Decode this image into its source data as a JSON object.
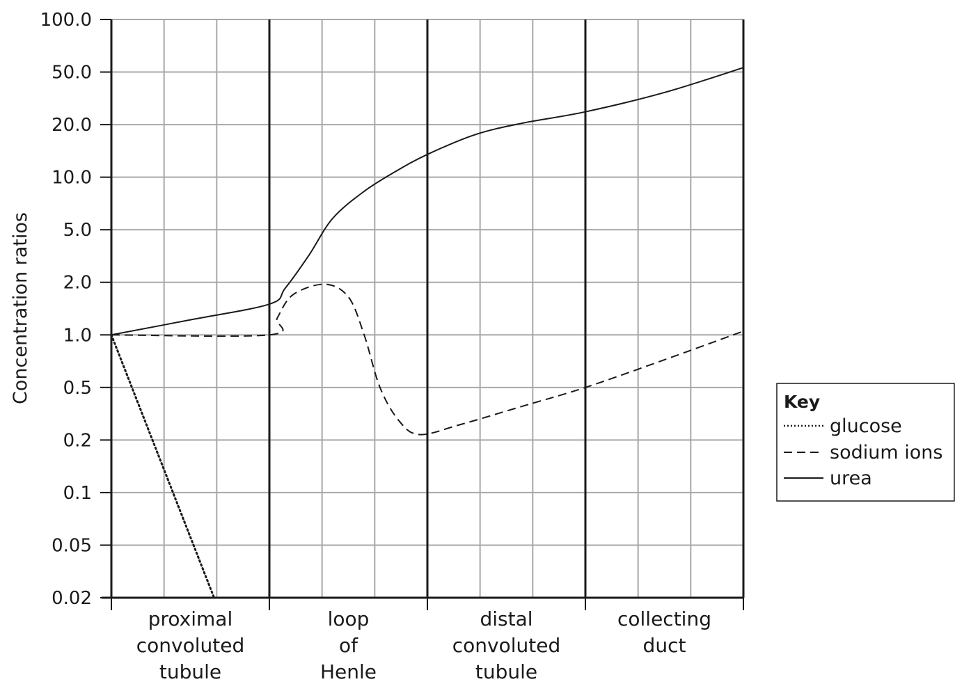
{
  "chart_data": {
    "type": "line",
    "ylabel": "Concentration ratios",
    "y_scale": "log",
    "y_ticks": [
      "100.0",
      "50.0",
      "20.0",
      "10.0",
      "5.0",
      "2.0",
      "1.0",
      "0.5",
      "0.2",
      "0.1",
      "0.05",
      "0.02"
    ],
    "y_tick_values": [
      100,
      50,
      20,
      10,
      5,
      2,
      1,
      0.5,
      0.2,
      0.1,
      0.05,
      0.02
    ],
    "ylim": [
      0.02,
      100
    ],
    "grid": true,
    "regions": [
      {
        "lines": [
          "proximal",
          "convoluted",
          "tubule"
        ]
      },
      {
        "lines": [
          "loop",
          "of",
          "Henle"
        ]
      },
      {
        "lines": [
          "distal",
          "convoluted",
          "tubule"
        ]
      },
      {
        "lines": [
          "collecting",
          "duct"
        ]
      }
    ],
    "legend": {
      "title": "Key",
      "placement": "right",
      "entries": [
        {
          "label": "glucose",
          "style": "dotted"
        },
        {
          "label": "sodium ions",
          "style": "dashed"
        },
        {
          "label": "urea",
          "style": "solid"
        }
      ]
    },
    "series": [
      {
        "key": "glucose",
        "style": "dotted",
        "points": [
          [
            0,
            1.0
          ],
          [
            0.65,
            0.02
          ]
        ]
      },
      {
        "key": "sodium",
        "style": "dashed",
        "points": [
          [
            0,
            1.0
          ],
          [
            1.0,
            1.0
          ],
          [
            1.05,
            1.25
          ],
          [
            1.15,
            1.7
          ],
          [
            1.35,
            1.95
          ],
          [
            1.5,
            1.65
          ],
          [
            1.6,
            1.0
          ],
          [
            1.7,
            0.5
          ],
          [
            1.82,
            0.28
          ],
          [
            1.95,
            0.22
          ],
          [
            2.2,
            0.26
          ],
          [
            2.6,
            0.36
          ],
          [
            3.0,
            0.5
          ],
          [
            3.5,
            0.72
          ],
          [
            4.0,
            1.05
          ]
        ]
      },
      {
        "key": "urea",
        "style": "solid",
        "points": [
          [
            0,
            1.0
          ],
          [
            0.5,
            1.22
          ],
          [
            1.0,
            1.5
          ],
          [
            1.1,
            1.85
          ],
          [
            1.25,
            3.2
          ],
          [
            1.4,
            5.8
          ],
          [
            1.6,
            8.3
          ],
          [
            1.8,
            10.8
          ],
          [
            2.0,
            13.5
          ],
          [
            2.3,
            17.5
          ],
          [
            2.6,
            20.5
          ],
          [
            3.0,
            25.0
          ],
          [
            3.5,
            35.0
          ],
          [
            4.0,
            53.0
          ]
        ]
      }
    ]
  }
}
